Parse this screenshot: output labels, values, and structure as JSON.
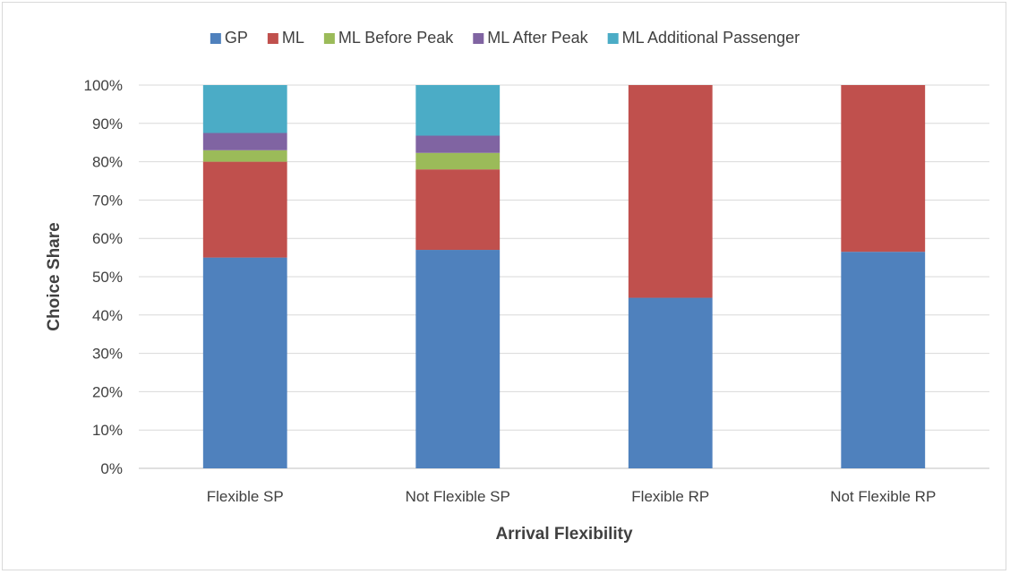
{
  "chart_data": {
    "type": "bar",
    "stacked": true,
    "xlabel": "Arrival Flexibility",
    "ylabel": "Choice Share",
    "ylim": [
      0,
      100
    ],
    "yticks": [
      "0%",
      "10%",
      "20%",
      "30%",
      "40%",
      "50%",
      "60%",
      "70%",
      "80%",
      "90%",
      "100%"
    ],
    "categories": [
      "Flexible SP",
      "Not Flexible SP",
      "Flexible RP",
      "Not Flexible RP"
    ],
    "grid": true,
    "legend_position": "top",
    "series": [
      {
        "name": "GP",
        "color": "#4f81bd",
        "values": [
          55,
          57,
          44.5,
          56.5
        ]
      },
      {
        "name": "ML",
        "color": "#c0504d",
        "values": [
          25,
          21,
          55.5,
          43.5
        ]
      },
      {
        "name": "ML Before Peak",
        "color": "#9bbb59",
        "values": [
          3,
          4.3,
          0,
          0
        ]
      },
      {
        "name": "ML After Peak",
        "color": "#8064a2",
        "values": [
          4.5,
          4.5,
          0,
          0
        ]
      },
      {
        "name": "ML Additional Passenger",
        "color": "#4bacc6",
        "values": [
          12.5,
          13.2,
          0,
          0
        ]
      }
    ]
  }
}
